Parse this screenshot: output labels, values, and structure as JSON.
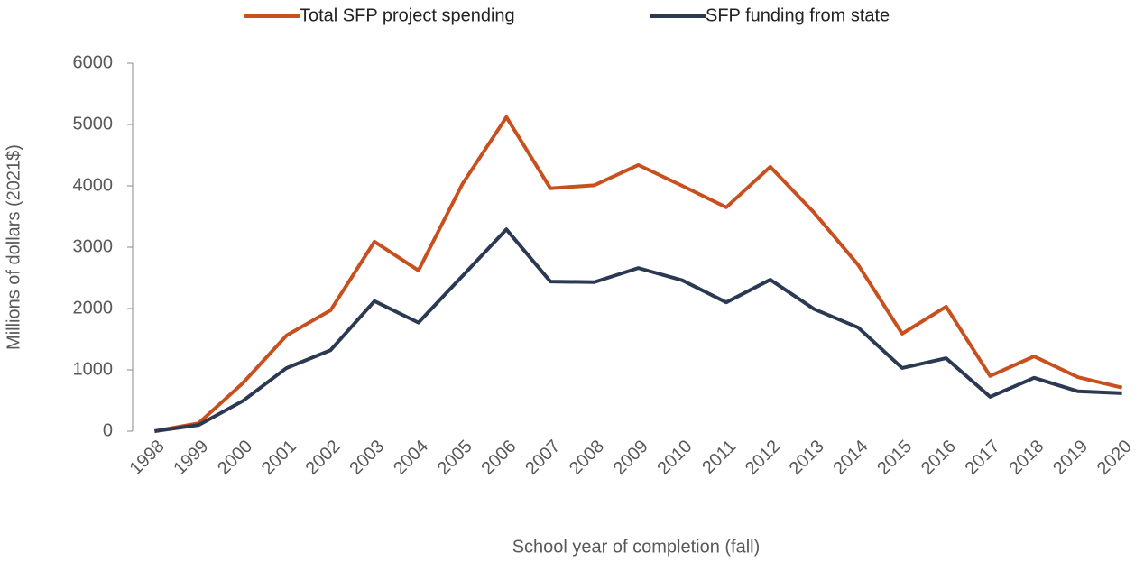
{
  "chart_data": {
    "type": "line",
    "categories": [
      "1998",
      "1999",
      "2000",
      "2001",
      "2002",
      "2003",
      "2004",
      "2005",
      "2006",
      "2007",
      "2008",
      "2009",
      "2010",
      "2011",
      "2012",
      "2013",
      "2014",
      "2015",
      "2016",
      "2017",
      "2018",
      "2019",
      "2020"
    ],
    "series": [
      {
        "name": "Total SFP project spending",
        "color": "#c8501e",
        "values": [
          0,
          130,
          780,
          1560,
          1970,
          3090,
          2620,
          4030,
          5120,
          3960,
          4010,
          4340,
          4000,
          3650,
          4310,
          3560,
          2710,
          1590,
          2030,
          900,
          1220,
          880,
          710
        ]
      },
      {
        "name": "SFP funding from state",
        "color": "#2b3a52",
        "values": [
          0,
          100,
          490,
          1030,
          1320,
          2120,
          1770,
          2530,
          3290,
          2440,
          2430,
          2660,
          2460,
          2100,
          2470,
          1990,
          1690,
          1030,
          1190,
          560,
          870,
          650,
          620
        ]
      }
    ],
    "x_label": "School year of completion (fall)",
    "y_label": "Millions of dollars (2021$)",
    "ylim": [
      0,
      6000
    ],
    "yticks": [
      0,
      1000,
      2000,
      3000,
      4000,
      5000,
      6000
    ],
    "grid": false,
    "legend": "top"
  }
}
